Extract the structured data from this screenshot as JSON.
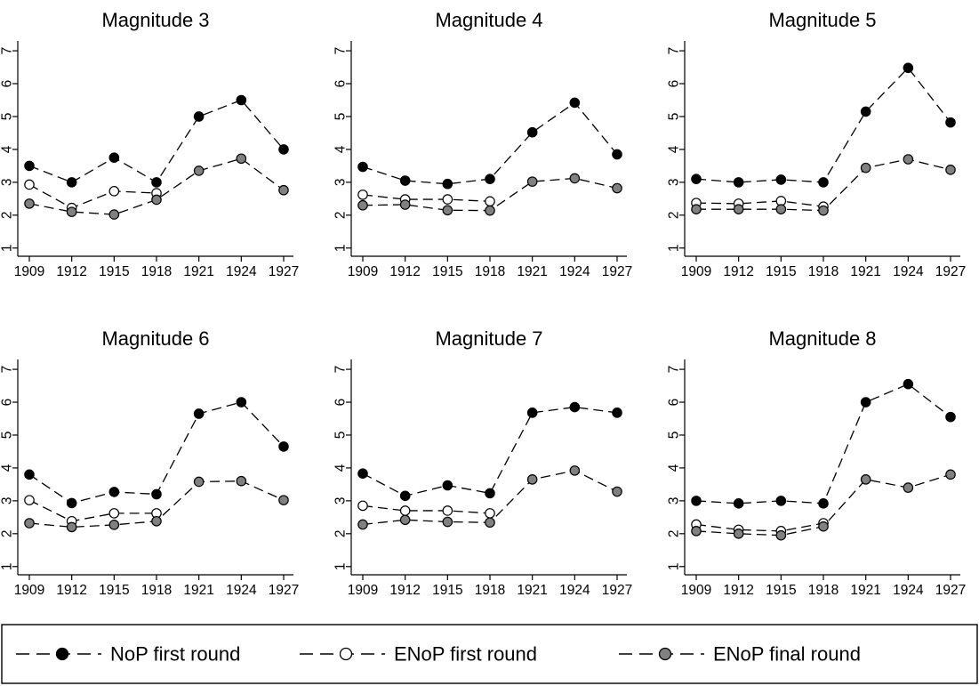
{
  "chart_data": {
    "type": "line",
    "x": [
      1909,
      1912,
      1915,
      1918,
      1921,
      1924,
      1927
    ],
    "x_tick_labels": [
      "1909",
      "1912",
      "1915",
      "1918",
      "1921",
      "1924",
      "1927"
    ],
    "y_ticks": [
      1,
      2,
      3,
      4,
      5,
      6,
      7
    ],
    "y_tick_labels": [
      "1",
      "2",
      "3",
      "4",
      "5",
      "6",
      "7"
    ],
    "ylim": [
      0.75,
      7.3
    ],
    "grid": false,
    "legend_position": "bottom",
    "series_styles": [
      {
        "key": "nop_first",
        "line": "dashed",
        "marker_fill": "#000000",
        "marker_stroke": "#000000"
      },
      {
        "key": "enop_first",
        "line": "dashed",
        "marker_fill": "#ffffff",
        "marker_stroke": "#000000"
      },
      {
        "key": "enop_final",
        "line": "dashed",
        "marker_fill": "#808080",
        "marker_stroke": "#000000"
      }
    ],
    "legend": [
      {
        "key": "nop_first",
        "label": "NoP first round"
      },
      {
        "key": "enop_first",
        "label": "ENoP first round"
      },
      {
        "key": "enop_final",
        "label": "ENoP final round"
      }
    ],
    "panels": [
      {
        "title": "Magnitude 3",
        "series": [
          {
            "key": "nop_first",
            "values": [
              3.5,
              3.0,
              3.75,
              3.0,
              5.0,
              5.5,
              4.0
            ]
          },
          {
            "key": "enop_first",
            "values": [
              2.93,
              2.22,
              2.73,
              2.67,
              null,
              null,
              null
            ]
          },
          {
            "key": "enop_final",
            "values": [
              2.35,
              2.1,
              2.02,
              2.47,
              3.35,
              3.72,
              2.76
            ]
          }
        ]
      },
      {
        "title": "Magnitude 4",
        "series": [
          {
            "key": "nop_first",
            "values": [
              3.47,
              3.05,
              2.95,
              3.1,
              4.52,
              5.42,
              3.85
            ]
          },
          {
            "key": "enop_first",
            "values": [
              2.62,
              2.48,
              2.48,
              2.42,
              null,
              null,
              null
            ]
          },
          {
            "key": "enop_final",
            "values": [
              2.3,
              2.32,
              2.15,
              2.14,
              3.02,
              3.12,
              2.82
            ]
          }
        ]
      },
      {
        "title": "Magnitude 5",
        "series": [
          {
            "key": "nop_first",
            "values": [
              3.1,
              3.0,
              3.08,
              3.0,
              5.15,
              6.48,
              4.82
            ]
          },
          {
            "key": "enop_first",
            "values": [
              2.37,
              2.35,
              2.43,
              2.26,
              null,
              null,
              null
            ]
          },
          {
            "key": "enop_final",
            "values": [
              2.18,
              2.18,
              2.18,
              2.14,
              3.44,
              3.7,
              3.38
            ]
          }
        ]
      },
      {
        "title": "Magnitude 6",
        "series": [
          {
            "key": "nop_first",
            "values": [
              3.8,
              2.93,
              3.27,
              3.2,
              5.65,
              6.0,
              4.65
            ]
          },
          {
            "key": "enop_first",
            "values": [
              3.02,
              2.38,
              2.62,
              2.62,
              null,
              null,
              null
            ]
          },
          {
            "key": "enop_final",
            "values": [
              2.32,
              2.2,
              2.27,
              2.38,
              3.58,
              3.6,
              3.02
            ]
          }
        ]
      },
      {
        "title": "Magnitude 7",
        "series": [
          {
            "key": "nop_first",
            "values": [
              3.83,
              3.15,
              3.47,
              3.23,
              5.68,
              5.85,
              5.68
            ]
          },
          {
            "key": "enop_first",
            "values": [
              2.85,
              2.7,
              2.7,
              2.62,
              null,
              null,
              null
            ]
          },
          {
            "key": "enop_final",
            "values": [
              2.28,
              2.42,
              2.36,
              2.34,
              3.65,
              3.92,
              3.28
            ]
          }
        ]
      },
      {
        "title": "Magnitude 8",
        "series": [
          {
            "key": "nop_first",
            "values": [
              3.0,
              2.92,
              3.0,
              2.92,
              6.0,
              6.55,
              5.55
            ]
          },
          {
            "key": "enop_first",
            "values": [
              2.28,
              2.12,
              2.08,
              2.32,
              null,
              null,
              null
            ]
          },
          {
            "key": "enop_final",
            "values": [
              2.08,
              2.0,
              1.95,
              2.22,
              3.65,
              3.4,
              3.8
            ]
          }
        ]
      }
    ]
  }
}
